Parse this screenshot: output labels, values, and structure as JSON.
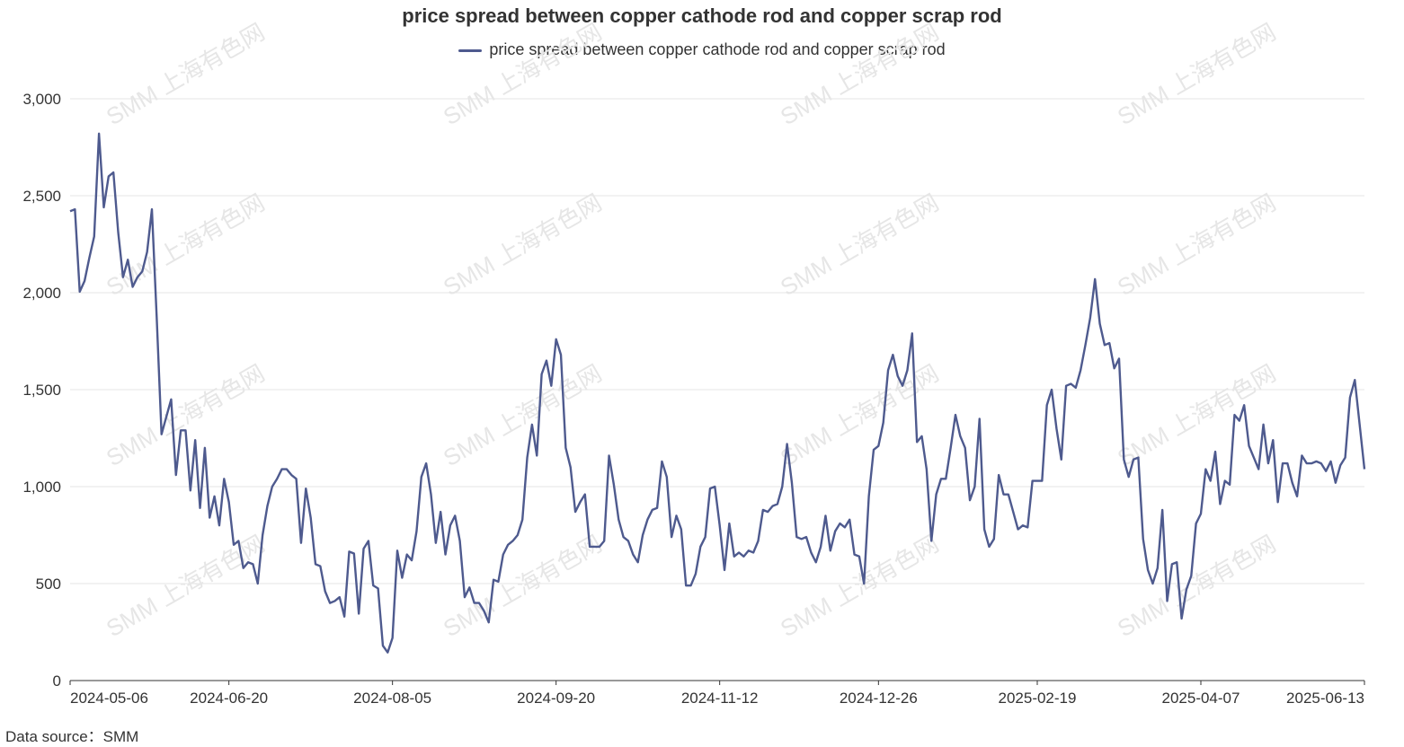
{
  "title": "price spread between copper cathode rod and copper scrap rod",
  "legend_label": "price spread between copper cathode rod and copper scrap rod",
  "source": "Data source：SMM",
  "watermark": "SMM 上海有色网",
  "colors": {
    "series": "#4e5a8e",
    "grid": "#e6e6e6",
    "axis": "#333333",
    "watermark": "#e6e6e6"
  },
  "chart_data": {
    "type": "line",
    "title": "price spread between copper cathode rod and copper scrap rod",
    "xlabel": "",
    "ylabel": "",
    "ylim": [
      0,
      3000
    ],
    "yticks": [
      0,
      500,
      1000,
      1500,
      2000,
      2500,
      3000
    ],
    "ytick_labels": [
      "0",
      "500",
      "1,000",
      "1,500",
      "2,000",
      "2,500",
      "3,000"
    ],
    "xtick_labels": [
      "2024-05-06",
      "2024-06-20",
      "2024-08-05",
      "2024-09-20",
      "2024-11-12",
      "2024-12-26",
      "2025-02-19",
      "2025-04-07",
      "2025-06-13"
    ],
    "grid": true,
    "legend_position": "top-center",
    "series": [
      {
        "name": "price spread between copper cathode rod and copper scrap rod",
        "color": "#4e5a8e",
        "values": [
          2420,
          2430,
          2005,
          2060,
          2180,
          2290,
          2820,
          2440,
          2600,
          2620,
          2310,
          2080,
          2170,
          2030,
          2080,
          2110,
          2210,
          2430,
          1870,
          1270,
          1360,
          1450,
          1060,
          1290,
          1290,
          980,
          1240,
          890,
          1200,
          840,
          950,
          800,
          1040,
          920,
          700,
          720,
          580,
          610,
          600,
          500,
          750,
          900,
          1000,
          1040,
          1090,
          1090,
          1060,
          1040,
          710,
          990,
          840,
          600,
          590,
          460,
          400,
          410,
          430,
          330,
          665,
          655,
          345,
          680,
          720,
          490,
          475,
          180,
          145,
          220,
          670,
          530,
          650,
          620,
          770,
          1050,
          1120,
          960,
          710,
          870,
          650,
          800,
          850,
          720,
          430,
          480,
          400,
          400,
          360,
          300,
          520,
          510,
          650,
          700,
          720,
          750,
          830,
          1150,
          1320,
          1160,
          1580,
          1650,
          1520,
          1760,
          1680,
          1200,
          1100,
          870,
          920,
          960,
          690,
          690,
          690,
          720,
          1160,
          1010,
          830,
          740,
          720,
          650,
          610,
          750,
          830,
          880,
          890,
          1130,
          1050,
          740,
          850,
          780,
          490,
          490,
          550,
          690,
          740,
          990,
          1000,
          800,
          570,
          810,
          640,
          660,
          640,
          670,
          660,
          720,
          880,
          870,
          900,
          910,
          1000,
          1220,
          1020,
          740,
          730,
          740,
          660,
          610,
          690,
          850,
          670,
          770,
          810,
          790,
          830,
          650,
          640,
          500,
          950,
          1190,
          1210,
          1330,
          1600,
          1680,
          1570,
          1520,
          1600,
          1790,
          1230,
          1260,
          1090,
          720,
          960,
          1040,
          1040,
          1200,
          1370,
          1260,
          1200,
          930,
          1000,
          1350,
          780,
          690,
          730,
          1060,
          960,
          960,
          870,
          780,
          800,
          790,
          1030,
          1030,
          1030,
          1420,
          1500,
          1300,
          1140,
          1520,
          1530,
          1510,
          1600,
          1730,
          1870,
          2070,
          1840,
          1730,
          1740,
          1610,
          1660,
          1140,
          1050,
          1140,
          1150,
          730,
          570,
          500,
          580,
          880,
          410,
          600,
          610,
          320,
          470,
          540,
          810,
          860,
          1090,
          1030,
          1180,
          910,
          1030,
          1010,
          1370,
          1340,
          1420,
          1210,
          1150,
          1090,
          1320,
          1120,
          1240,
          920,
          1120,
          1120,
          1020,
          950,
          1160,
          1120,
          1120,
          1130,
          1120,
          1080,
          1130,
          1020,
          1110,
          1150,
          1460,
          1550,
          1320,
          1090
        ]
      }
    ]
  }
}
